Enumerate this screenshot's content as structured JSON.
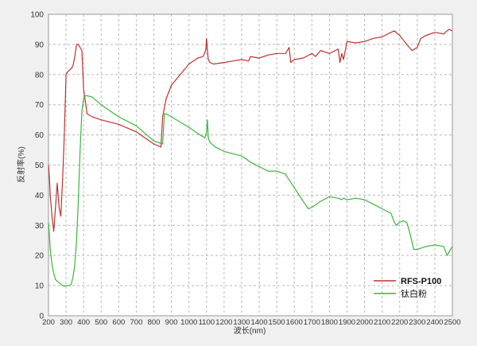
{
  "chart_data": {
    "type": "line",
    "title": "",
    "xlabel": "波长(nm)",
    "ylabel": "反射率(%)",
    "xlim": [
      200,
      2500
    ],
    "ylim": [
      0,
      100
    ],
    "xticks": [
      200,
      300,
      400,
      500,
      600,
      700,
      800,
      900,
      1000,
      1100,
      1200,
      1300,
      1400,
      1500,
      1600,
      1700,
      1800,
      1900,
      2000,
      2100,
      2200,
      2300,
      2400,
      2500
    ],
    "yticks": [
      0,
      10,
      20,
      30,
      40,
      50,
      60,
      70,
      80,
      90,
      100
    ],
    "grid": true,
    "legend_position": "bottom-right",
    "series": [
      {
        "name": "RFS-P100",
        "color": "#c03030",
        "x": [
          200,
          205,
          210,
          220,
          230,
          240,
          250,
          260,
          270,
          280,
          290,
          300,
          310,
          320,
          330,
          340,
          350,
          360,
          370,
          380,
          390,
          400,
          420,
          450,
          500,
          600,
          700,
          750,
          800,
          840,
          850,
          860,
          870,
          900,
          950,
          1000,
          1050,
          1080,
          1095,
          1100,
          1105,
          1110,
          1120,
          1140,
          1200,
          1250,
          1300,
          1340,
          1350,
          1400,
          1450,
          1500,
          1550,
          1570,
          1580,
          1600,
          1650,
          1700,
          1720,
          1750,
          1800,
          1850,
          1860,
          1870,
          1880,
          1900,
          1950,
          2000,
          2050,
          2100,
          2150,
          2170,
          2200,
          2240,
          2270,
          2300,
          2320,
          2350,
          2400,
          2450,
          2480,
          2500
        ],
        "y": [
          50,
          46,
          40,
          33,
          28,
          36,
          44,
          36,
          33,
          45,
          60,
          80,
          81,
          81.5,
          82,
          83,
          86,
          90,
          90,
          89,
          88,
          75,
          67,
          66,
          65,
          63.5,
          61,
          59,
          57,
          56,
          66,
          69,
          72,
          76.5,
          80,
          83.5,
          85.5,
          86,
          88,
          92,
          88,
          85,
          84,
          83.5,
          84,
          84.5,
          85,
          84.5,
          86,
          85.5,
          86.5,
          87,
          87,
          89,
          84,
          85,
          85.5,
          87,
          86,
          88,
          87,
          88.5,
          84,
          87,
          85,
          91,
          90.5,
          91,
          92,
          92.5,
          94,
          94.5,
          93,
          90,
          88,
          89,
          92,
          93,
          94,
          93.5,
          95,
          94.5
        ]
      },
      {
        "name": "钛白粉",
        "color": "#3cb43c",
        "x": [
          200,
          205,
          210,
          220,
          230,
          240,
          250,
          260,
          270,
          280,
          290,
          300,
          310,
          320,
          330,
          340,
          350,
          360,
          370,
          380,
          390,
          400,
          410,
          420,
          450,
          500,
          600,
          700,
          800,
          850,
          860,
          870,
          900,
          1000,
          1050,
          1090,
          1100,
          1105,
          1110,
          1120,
          1150,
          1200,
          1300,
          1350,
          1400,
          1450,
          1500,
          1550,
          1560,
          1600,
          1650,
          1680,
          1700,
          1750,
          1800,
          1850,
          1870,
          1880,
          1900,
          1950,
          2000,
          2050,
          2100,
          2150,
          2170,
          2180,
          2200,
          2220,
          2240,
          2260,
          2280,
          2300,
          2350,
          2400,
          2450,
          2470,
          2500
        ],
        "y": [
          31,
          27,
          22,
          17,
          14,
          12,
          11.5,
          11,
          10.5,
          10,
          9.8,
          10,
          10,
          10,
          10.5,
          13,
          17,
          25,
          38,
          55,
          68,
          72,
          73,
          73,
          72.5,
          70,
          66,
          63,
          58,
          57,
          67,
          67,
          66,
          62.5,
          60.5,
          59,
          61,
          65,
          59,
          57.5,
          56,
          54.5,
          53,
          51,
          49.5,
          48,
          48,
          47,
          46,
          42.5,
          38,
          35.5,
          36,
          38,
          39.5,
          39,
          38.5,
          39,
          38.5,
          39,
          38.5,
          37,
          35.5,
          34,
          31,
          30,
          31,
          31.5,
          31,
          27,
          22,
          22,
          23,
          23.5,
          23,
          20,
          23
        ]
      }
    ]
  }
}
